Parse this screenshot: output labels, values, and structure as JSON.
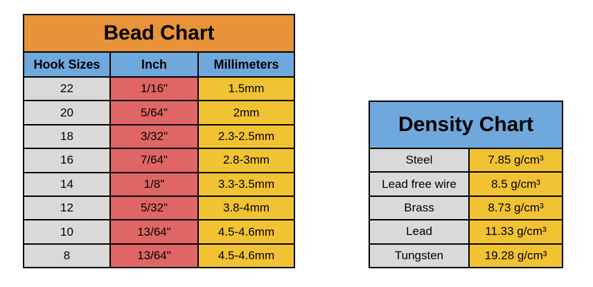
{
  "bead_chart": {
    "title": "Bead Chart",
    "headers": [
      "Hook Sizes",
      "Inch",
      "Millimeters"
    ],
    "rows": [
      [
        "22",
        "1/16\"",
        "1.5mm"
      ],
      [
        "20",
        "5/64\"",
        "2mm"
      ],
      [
        "18",
        "3/32\"",
        "2.3-2.5mm"
      ],
      [
        "16",
        "7/64\"",
        "2.8-3mm"
      ],
      [
        "14",
        "1/8\"",
        "3.3-3.5mm"
      ],
      [
        "12",
        "5/32\"",
        "3.8-4mm"
      ],
      [
        "10",
        "13/64\"",
        "4.5-4.6mm"
      ],
      [
        "8",
        "13/64\"",
        "4.5-4.6mm"
      ]
    ]
  },
  "density_chart": {
    "title": "Density Chart",
    "rows": [
      [
        "Steel",
        "7.85 g/cm³"
      ],
      [
        "Lead free wire",
        "8.5 g/cm³"
      ],
      [
        "Brass",
        "8.73 g/cm³"
      ],
      [
        "Lead",
        "11.33 g/cm³"
      ],
      [
        "Tungsten",
        "19.28 g/cm³"
      ]
    ]
  },
  "colors": {
    "bead_title": "#E8923A",
    "header": "#6FA8DC",
    "label_cell": "#D9D9D9",
    "inch_cell": "#E06666",
    "value_cell": "#F1C232"
  }
}
